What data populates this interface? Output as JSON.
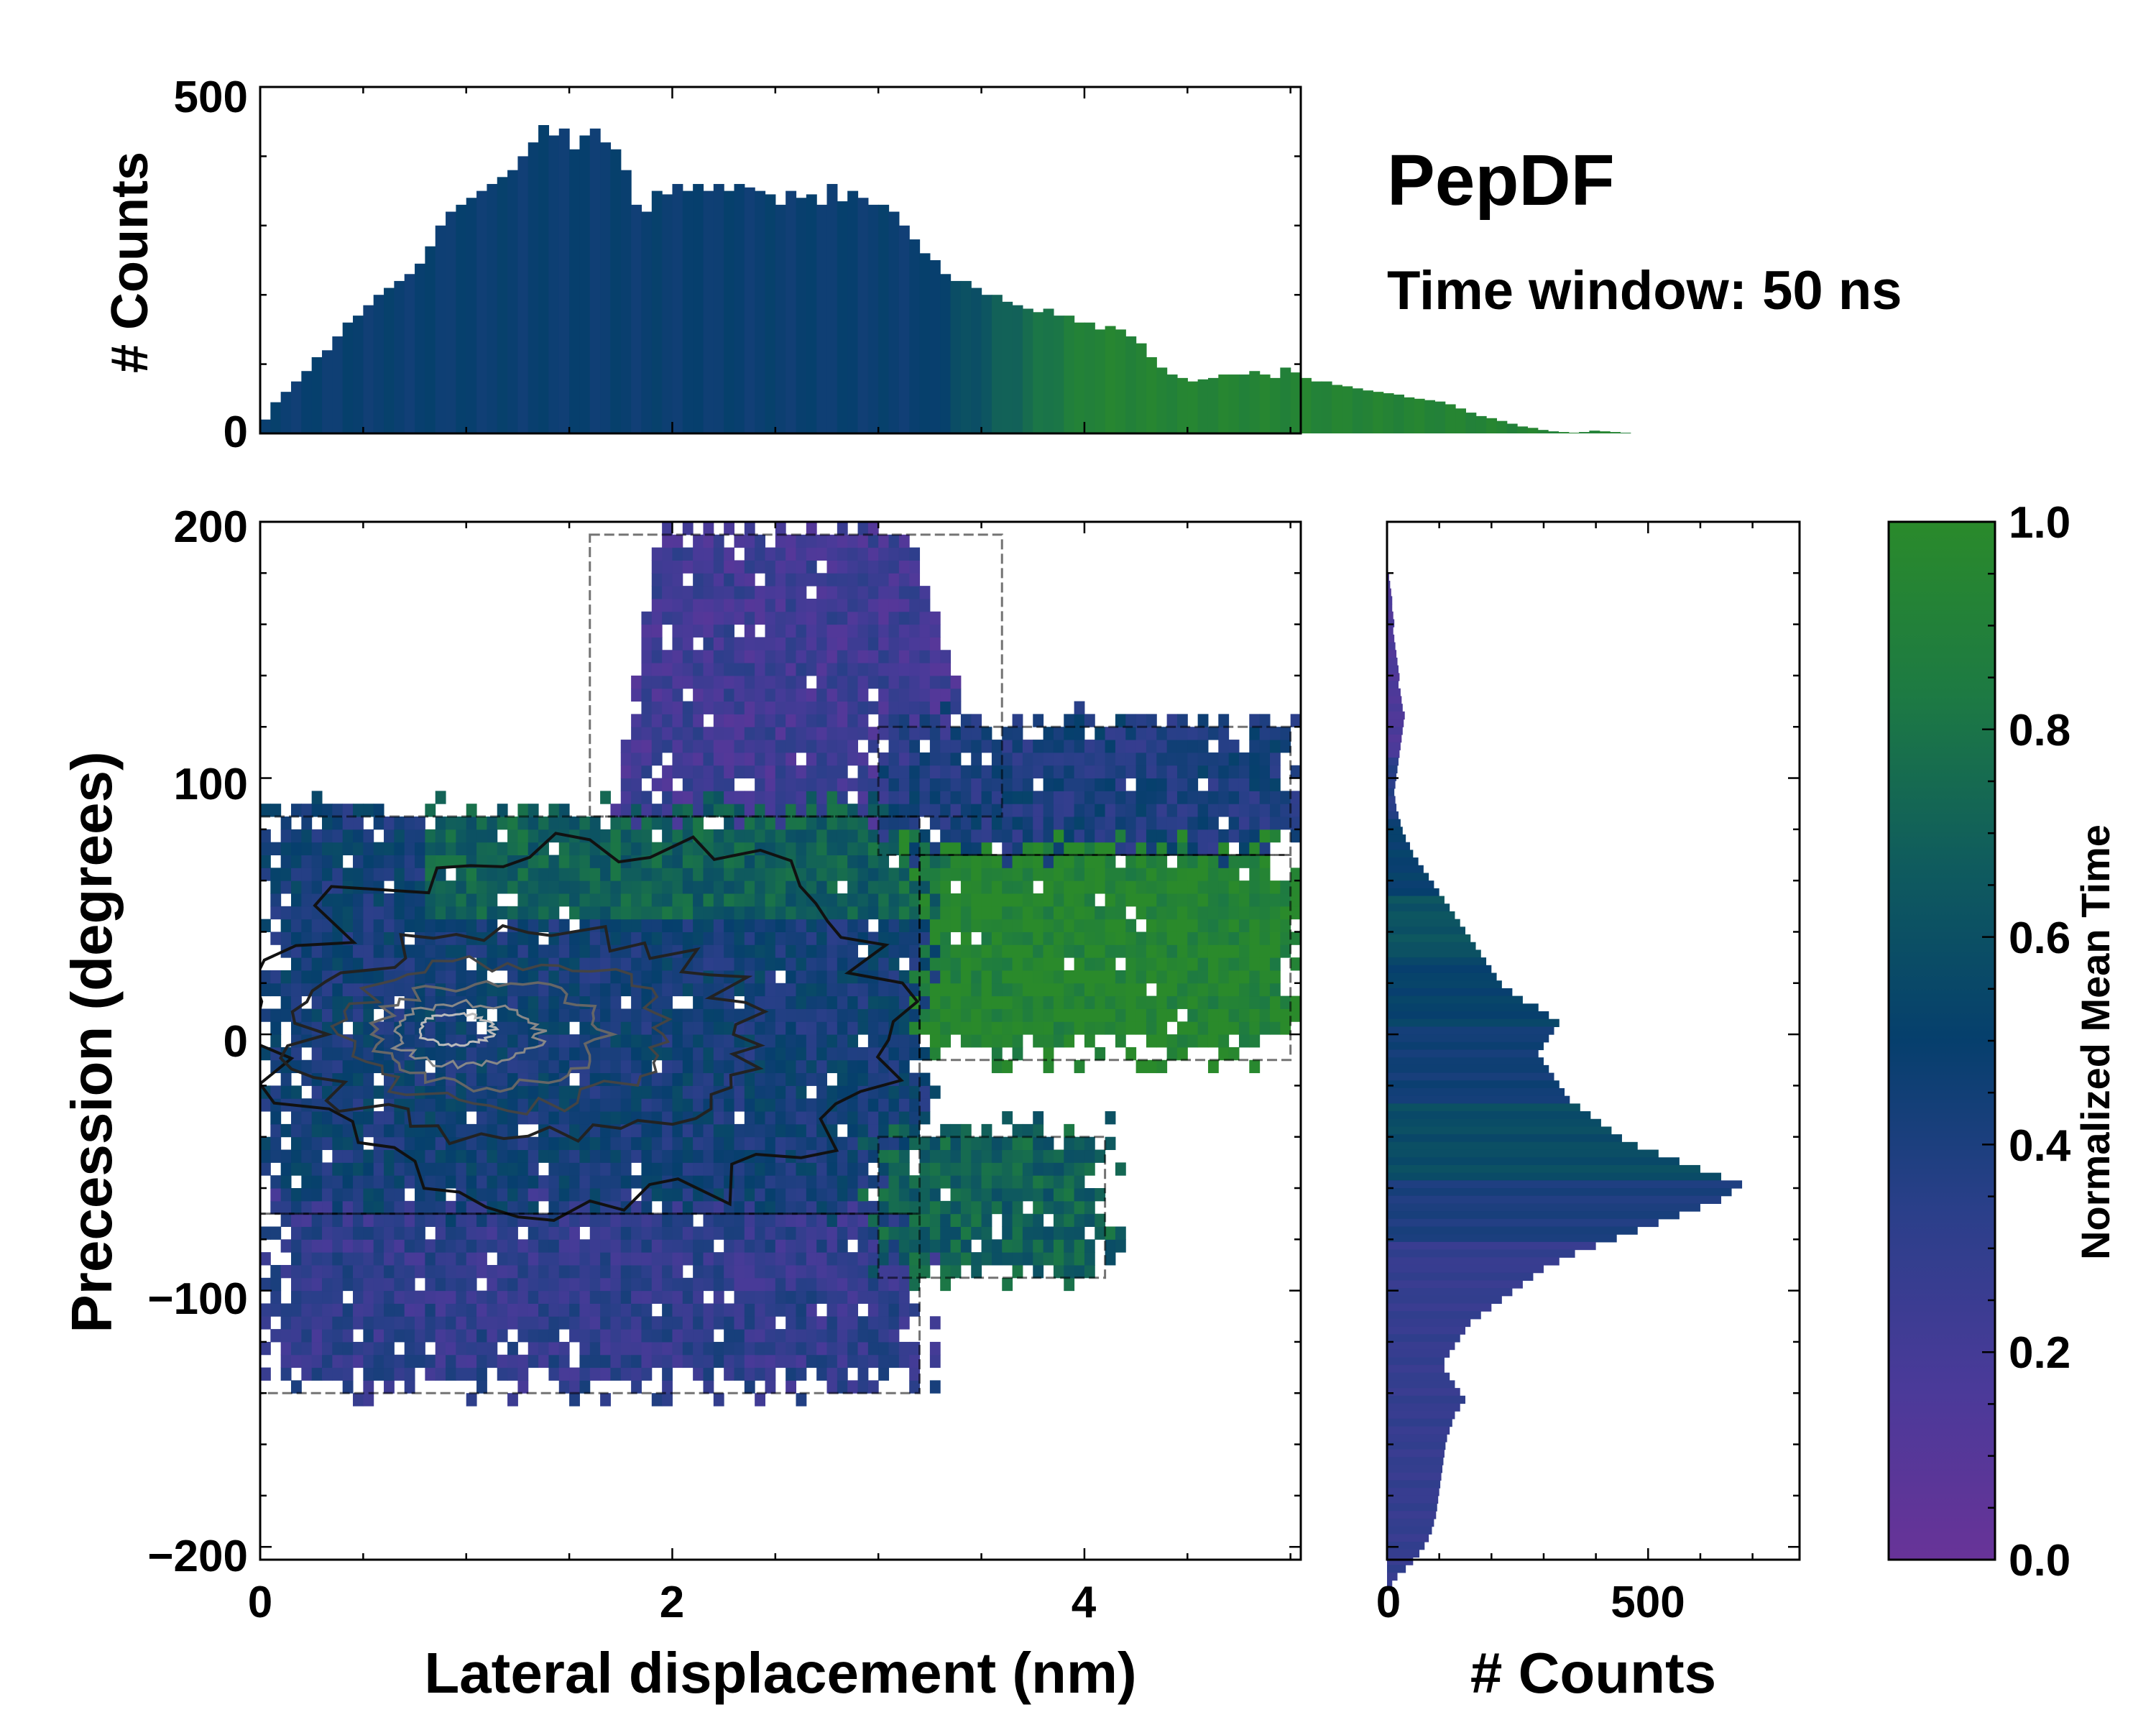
{
  "title": "PepDF",
  "subtitle": "Time window: 50 ns",
  "chart_data": [
    {
      "id": "top-histogram",
      "type": "bar",
      "title": "",
      "xlabel": "",
      "ylabel": "# Counts",
      "xlim": [
        0,
        5.05
      ],
      "ylim": [
        0,
        500
      ],
      "yticks": [
        "0",
        "500"
      ],
      "bin_width": 0.05,
      "x_start": 0.0,
      "values": [
        20,
        45,
        60,
        75,
        90,
        110,
        120,
        140,
        160,
        170,
        185,
        200,
        210,
        220,
        230,
        245,
        270,
        300,
        320,
        330,
        340,
        350,
        360,
        370,
        380,
        400,
        420,
        445,
        430,
        440,
        410,
        430,
        440,
        420,
        410,
        380,
        330,
        320,
        350,
        345,
        360,
        350,
        360,
        350,
        360,
        350,
        360,
        355,
        350,
        345,
        330,
        350,
        340,
        345,
        330,
        360,
        335,
        350,
        340,
        330,
        330,
        320,
        300,
        280,
        260,
        250,
        230,
        220,
        220,
        210,
        200,
        200,
        190,
        185,
        180,
        175,
        180,
        170,
        170,
        160,
        160,
        150,
        155,
        150,
        140,
        130,
        110,
        95,
        85,
        80,
        75,
        78,
        80,
        85,
        85,
        85,
        90,
        85,
        80,
        95,
        88,
        80,
        75,
        75,
        70,
        68,
        65,
        62,
        60,
        58,
        56,
        52,
        50,
        48,
        46,
        42,
        36,
        30,
        25,
        22,
        18,
        14,
        10,
        8,
        5,
        3,
        2,
        1,
        2,
        4,
        3,
        2,
        1,
        0,
        0
      ],
      "colors": "bins beyond x=3.3 shade from navy to green (normalized mean time)"
    },
    {
      "id": "heatmap",
      "type": "heatmap",
      "title": "",
      "xlabel": "Lateral displacement (nm)",
      "ylabel": "Precession (degrees)",
      "xlim": [
        0,
        5.05
      ],
      "ylim": [
        -205,
        200
      ],
      "xticks": [
        "0",
        "2",
        "4"
      ],
      "yticks": [
        "200",
        "100",
        "0",
        "−100",
        "−200"
      ],
      "regions": [
        {
          "name": "main-core",
          "x": [
            0,
            3.2
          ],
          "y": [
            -70,
            85
          ],
          "mean_time": 0.45
        },
        {
          "name": "upper-lobe",
          "x": [
            1.6,
            3.6
          ],
          "y": [
            85,
            195
          ],
          "mean_time": 0.22
        },
        {
          "name": "right-arm-upper",
          "x": [
            3.0,
            5.0
          ],
          "y": [
            70,
            120
          ],
          "mean_time": 0.4
        },
        {
          "name": "right-arm-green",
          "x": [
            3.2,
            5.0
          ],
          "y": [
            -10,
            70
          ],
          "mean_time": 0.95
        },
        {
          "name": "lower-lobe",
          "x": [
            0,
            3.2
          ],
          "y": [
            -140,
            -70
          ],
          "mean_time": 0.3
        },
        {
          "name": "lower-right-green",
          "x": [
            3.0,
            4.1
          ],
          "y": [
            -95,
            -40
          ],
          "mean_time": 0.7
        }
      ],
      "contour_levels": "density contours; dense center near x=1.0, y=0"
    },
    {
      "id": "right-histogram",
      "type": "bar",
      "orientation": "horizontal",
      "xlabel": "# Counts",
      "ylabel": "",
      "xlim": [
        0,
        790
      ],
      "ylim": [
        -205,
        200
      ],
      "xticks": [
        "0",
        "500"
      ],
      "bin_width": 3,
      "y_start": 180,
      "values": [
        4,
        6,
        8,
        10,
        10,
        12,
        14,
        12,
        14,
        16,
        18,
        20,
        22,
        24,
        22,
        26,
        28,
        30,
        34,
        32,
        30,
        28,
        26,
        24,
        22,
        20,
        18,
        16,
        14,
        16,
        18,
        22,
        26,
        30,
        36,
        44,
        50,
        60,
        70,
        80,
        90,
        100,
        110,
        120,
        130,
        140,
        150,
        160,
        170,
        180,
        190,
        200,
        210,
        220,
        240,
        260,
        290,
        310,
        330,
        320,
        310,
        300,
        290,
        300,
        310,
        320,
        330,
        340,
        350,
        370,
        390,
        410,
        430,
        450,
        480,
        520,
        560,
        600,
        640,
        680,
        660,
        640,
        600,
        560,
        520,
        480,
        440,
        400,
        360,
        330,
        300,
        280,
        260,
        240,
        220,
        200,
        180,
        160,
        150,
        140,
        130,
        120,
        110,
        110,
        120,
        130,
        140,
        150,
        140,
        130,
        125,
        120,
        115,
        112,
        110,
        108,
        106,
        104,
        102,
        100,
        98,
        96,
        94,
        90,
        86,
        80,
        72,
        62,
        50,
        36,
        20,
        10
      ]
    },
    {
      "id": "colorbar",
      "type": "colorbar",
      "label": "Normalized Mean Time",
      "range": [
        0.0,
        1.0
      ],
      "ticks": [
        "0.0",
        "0.2",
        "0.4",
        "0.6",
        "0.8",
        "1.0"
      ],
      "colors": [
        "#683398",
        "#4a3a99",
        "#2b3f8a",
        "#063f6d",
        "#0f5b5e",
        "#1d7a43",
        "#2a8a2b"
      ]
    }
  ]
}
